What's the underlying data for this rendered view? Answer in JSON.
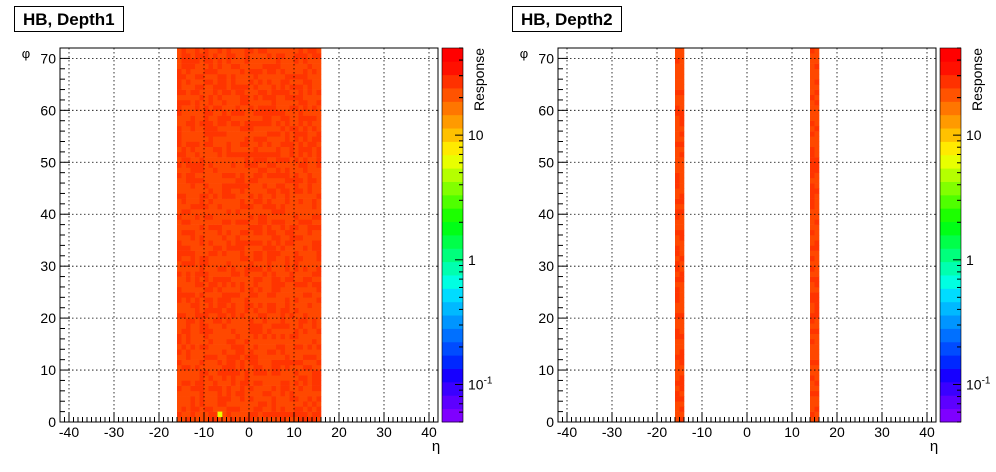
{
  "chart_data": [
    {
      "type": "heatmap",
      "title": "HB, Depth1",
      "xlabel": "η",
      "ylabel": "φ",
      "zlabel": "Response",
      "xlim": [
        -42,
        42
      ],
      "ylim": [
        0,
        72
      ],
      "z_scale": "log",
      "zlim": [
        0.05,
        50
      ],
      "x_ticks": [
        -40,
        -30,
        -20,
        -10,
        0,
        10,
        20,
        30,
        40
      ],
      "y_ticks": [
        0,
        10,
        20,
        30,
        40,
        50,
        60,
        70
      ],
      "z_ticks": [
        "10",
        "1",
        "10-1"
      ],
      "grid": true,
      "filled_eta_ranges": [
        [
          -16,
          16
        ]
      ],
      "typical_response": 20,
      "fill_description": "eta -16..16 all phi filled, mostly red/orange with small variation",
      "low_cells": [
        {
          "eta": -7,
          "phi": 2,
          "value": 8
        }
      ]
    },
    {
      "type": "heatmap",
      "title": "HB, Depth2",
      "xlabel": "η",
      "ylabel": "φ",
      "zlabel": "Response",
      "xlim": [
        -42,
        42
      ],
      "ylim": [
        0,
        72
      ],
      "z_scale": "log",
      "zlim": [
        0.05,
        50
      ],
      "x_ticks": [
        -40,
        -30,
        -20,
        -10,
        0,
        10,
        20,
        30,
        40
      ],
      "y_ticks": [
        0,
        10,
        20,
        30,
        40,
        50,
        60,
        70
      ],
      "z_ticks": [
        "10",
        "1",
        "10-1"
      ],
      "grid": true,
      "filled_eta_ranges": [
        [
          -16,
          -14
        ],
        [
          14,
          16
        ]
      ],
      "typical_response": 20,
      "fill_description": "two narrow columns at eta -15/-16 and 15/16, all phi, orange-red"
    }
  ],
  "colors": {
    "palette": [
      "#7f00ff",
      "#5d00ff",
      "#3a00ff",
      "#1600ff",
      "#0028ff",
      "#004cff",
      "#0070ff",
      "#0095ff",
      "#00b9ff",
      "#00dcff",
      "#00ffe2",
      "#00ffaf",
      "#00ff7c",
      "#00ff49",
      "#00ff16",
      "#1cff00",
      "#4fff00",
      "#82ff00",
      "#b5ff00",
      "#e8ff00",
      "#ffea00",
      "#ffc100",
      "#ff9a00",
      "#ff7600",
      "#ff5300",
      "#ff3100",
      "#ff1000",
      "#ff0000"
    ],
    "cell_main": "#ff4800",
    "cell_alt": "#ff3400"
  }
}
